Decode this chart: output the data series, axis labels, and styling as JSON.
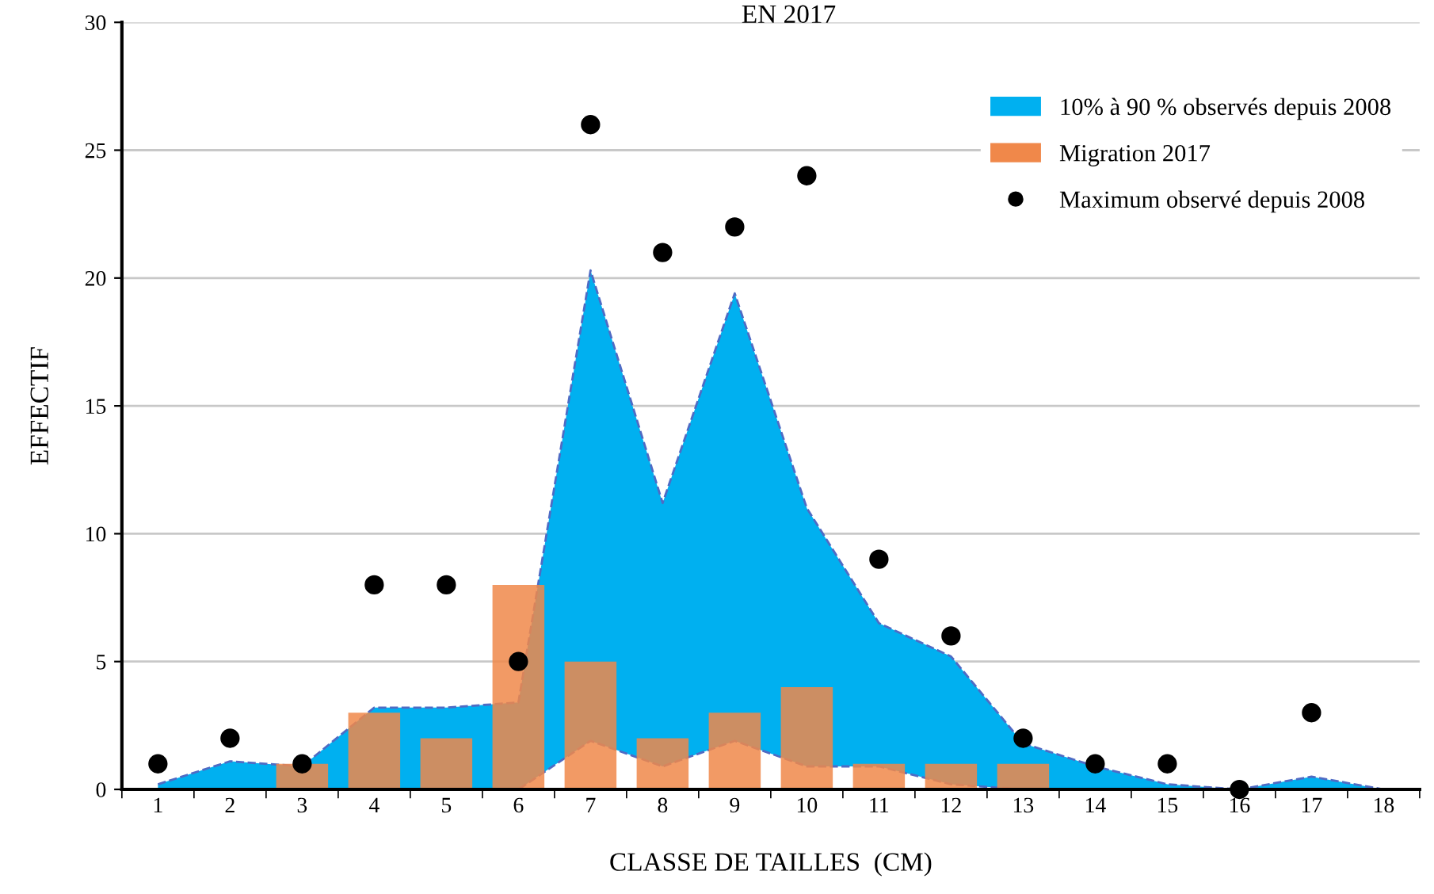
{
  "chart_data": {
    "type": "bar",
    "title": "EN 2017",
    "xlabel": "CLASSE DE TAILLES  (CM)",
    "ylabel": "EFFECTIF",
    "categories": [
      "1",
      "2",
      "3",
      "4",
      "5",
      "6",
      "7",
      "8",
      "9",
      "10",
      "11",
      "12",
      "13",
      "14",
      "15",
      "16",
      "17",
      "18"
    ],
    "ylim": [
      0,
      30
    ],
    "yticks": [
      0,
      5,
      10,
      15,
      20,
      25,
      30
    ],
    "grid": "y",
    "legend": "top right",
    "series": [
      {
        "name": "10% à 90 % observés depuis 2008",
        "type": "area",
        "color": "#00b0f0",
        "line_style": "dashed",
        "values": [
          0.2,
          1.1,
          0.9,
          3.2,
          3.2,
          3.4,
          20.3,
          11.2,
          19.4,
          11,
          6.5,
          5.2,
          1.8,
          0.9,
          0.2,
          0,
          0.5,
          0
        ]
      },
      {
        "type": "area",
        "color": "#ffffff",
        "line_style": "dashed",
        "values": [
          0,
          0,
          0,
          0,
          0,
          0,
          1.9,
          0.9,
          1.9,
          0.9,
          0.9,
          0.2,
          0,
          0,
          0,
          0,
          0,
          0
        ]
      },
      {
        "name": "Migration 2017",
        "color": "#f0884a",
        "values": [
          null,
          null,
          1,
          3,
          2,
          8,
          5,
          2,
          3,
          4,
          1,
          1,
          1,
          null,
          null,
          null,
          null,
          null
        ]
      },
      {
        "name": "Maximum observé depuis 2008",
        "type": "scatter",
        "color": "#000000",
        "marker": "circle",
        "values": [
          1,
          2,
          1,
          8,
          8,
          5,
          26,
          21,
          22,
          24,
          9,
          6,
          2,
          1,
          1,
          0,
          3,
          null
        ]
      }
    ]
  }
}
